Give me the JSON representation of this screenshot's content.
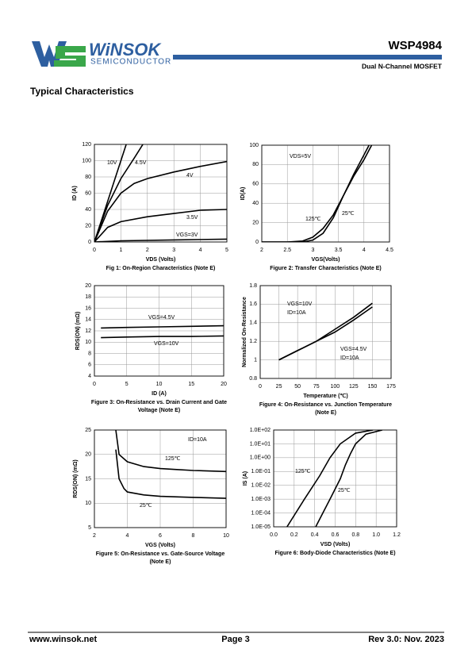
{
  "header": {
    "brand": "WiNSOK",
    "brand_sub": "SEMICONDUCTOR",
    "part": "WSP4984",
    "description": "Dual N-Channel MOSFET"
  },
  "section_title": "Typical Characteristics",
  "footer": {
    "website": "www.winsok.net",
    "page": "Page  3",
    "revision": "Rev 3.0: Nov. 2023"
  },
  "chart_data": [
    {
      "type": "line",
      "caption": [
        "Fig 1: On-Region Characteristics (Note E)"
      ],
      "x_label": "VDS (Volts)",
      "y_label": "ID (A)",
      "grid": true,
      "color": "#000000",
      "xlim": [
        0,
        5
      ],
      "xticks": [
        0,
        1,
        2,
        3,
        4,
        5
      ],
      "ylim": [
        0,
        120
      ],
      "yticks": [
        0,
        20,
        40,
        60,
        80,
        100,
        120
      ],
      "annotations": [],
      "series": [
        {
          "name": "10V",
          "x": [
            0,
            0.4,
            0.8,
            1.2
          ],
          "values": [
            0,
            40,
            80,
            120
          ]
        },
        {
          "name": "4.5V",
          "x": [
            0,
            0.5,
            1,
            1.5,
            1.83
          ],
          "values": [
            0,
            45,
            78,
            103,
            120
          ]
        },
        {
          "name": "4V",
          "x": [
            0,
            0.5,
            1,
            1.5,
            2,
            3,
            4,
            5
          ],
          "values": [
            0,
            38,
            60,
            72,
            78,
            86,
            93,
            99
          ]
        },
        {
          "name": "3.5V",
          "x": [
            0,
            0.5,
            1,
            2,
            3,
            4,
            5
          ],
          "values": [
            0,
            18,
            25,
            31,
            35,
            39,
            40
          ]
        },
        {
          "name": "VGS=3V",
          "x": [
            0,
            1,
            3,
            5
          ],
          "values": [
            0,
            1.5,
            2.5,
            3.5
          ]
        }
      ]
    },
    {
      "type": "line",
      "caption": [
        "Figure 2: Transfer Characteristics (Note E)"
      ],
      "x_label": "VGS(Volts)",
      "y_label": "ID(A)",
      "grid": true,
      "color": "#000000",
      "xlim": [
        2,
        4.5
      ],
      "xticks": [
        2,
        2.5,
        3,
        3.5,
        4,
        4.5
      ],
      "ylim": [
        0,
        100
      ],
      "yticks": [
        0,
        20,
        40,
        60,
        80,
        100
      ],
      "annotations": [
        "VDS=5V"
      ],
      "series": [
        {
          "name": "125℃",
          "x": [
            2,
            2.5,
            2.8,
            3,
            3.2,
            3.4,
            3.6,
            3.8,
            4,
            4.15
          ],
          "values": [
            0,
            0,
            1,
            5,
            14,
            28,
            48,
            68,
            85,
            100
          ]
        },
        {
          "name": "25℃",
          "x": [
            2,
            2.8,
            3,
            3.2,
            3.4,
            3.6,
            3.8,
            4,
            4.1
          ],
          "values": [
            0,
            0,
            2,
            9,
            25,
            48,
            70,
            90,
            100
          ]
        }
      ]
    },
    {
      "type": "line",
      "caption": [
        "Figure 3: On-Resistance vs. Drain Current and Gate",
        "Voltage (Note E)"
      ],
      "x_label": "ID (A)",
      "y_label": "RDS(ON) (mΩ)",
      "grid": true,
      "color": "#000000",
      "xlim": [
        0,
        20
      ],
      "xticks": [
        0,
        5,
        10,
        15,
        20
      ],
      "ylim": [
        4,
        20
      ],
      "yticks": [
        4,
        6,
        8,
        10,
        12,
        14,
        16,
        18,
        20
      ],
      "annotations": [],
      "series": [
        {
          "name": "VGS=4.5V",
          "x": [
            1,
            5,
            10,
            15,
            20
          ],
          "values": [
            12.5,
            12.6,
            12.7,
            12.8,
            12.9
          ]
        },
        {
          "name": "VGS=10V",
          "x": [
            1,
            5,
            10,
            15,
            20
          ],
          "values": [
            10.8,
            10.9,
            11,
            11,
            11.1
          ]
        }
      ]
    },
    {
      "type": "line",
      "caption": [
        "Figure 4: On-Resistance vs. Junction Temperature",
        "(Note E)"
      ],
      "x_label": "Temperature (℃)",
      "y_label": "Normalized On-Resistance",
      "grid": true,
      "color": "#000000",
      "xlim": [
        0,
        175
      ],
      "xticks": [
        0,
        25,
        50,
        75,
        100,
        125,
        150,
        175
      ],
      "ylim": [
        0.8,
        1.8
      ],
      "yticks": [
        0.8,
        1,
        1.2,
        1.4,
        1.6,
        1.8
      ],
      "annotations": [
        "ID=10A",
        "ID=10A"
      ],
      "series": [
        {
          "name": "VGS=10V",
          "x": [
            25,
            50,
            75,
            100,
            125,
            150
          ],
          "values": [
            1,
            1.1,
            1.2,
            1.3,
            1.43,
            1.57
          ]
        },
        {
          "name": "VGS=4.5V",
          "x": [
            25,
            50,
            75,
            100,
            125,
            150
          ],
          "values": [
            1,
            1.1,
            1.2,
            1.33,
            1.46,
            1.61
          ]
        }
      ]
    },
    {
      "type": "line",
      "caption": [
        "Figure 5: On-Resistance vs. Gate-Source Voltage",
        "(Note E)"
      ],
      "x_label": "VGS (Volts)",
      "y_label": "RDS(ON) (mΩ)",
      "grid": true,
      "color": "#000000",
      "xlim": [
        2,
        10
      ],
      "xticks": [
        2,
        4,
        6,
        8,
        10
      ],
      "ylim": [
        5,
        25
      ],
      "yticks": [
        5,
        10,
        15,
        20,
        25
      ],
      "annotations": [
        "ID=10A"
      ],
      "series": [
        {
          "name": "125℃",
          "x": [
            3.3,
            3.5,
            4,
            5,
            6,
            7,
            8,
            10
          ],
          "values": [
            25,
            20,
            18.5,
            17.5,
            17.1,
            16.9,
            16.7,
            16.5
          ]
        },
        {
          "name": "25℃",
          "x": [
            3.3,
            3.5,
            3.8,
            4,
            5,
            6,
            8,
            10
          ],
          "values": [
            21,
            15,
            13,
            12.3,
            11.7,
            11.4,
            11.2,
            11
          ]
        }
      ]
    },
    {
      "type": "line",
      "caption": [
        "Figure 6: Body-Diode Characteristics (Note E)"
      ],
      "x_label": "VSD (Volts)",
      "y_label": "IS (A)",
      "grid": true,
      "log_y": true,
      "color": "#000000",
      "xlim": [
        0,
        1.2
      ],
      "xticks": [
        {
          "value": 0,
          "label": "0.0"
        },
        0.2,
        0.4,
        0.6,
        0.8,
        {
          "value": 1,
          "label": "1.0"
        },
        1.2
      ],
      "ylim": [
        1e-05,
        100
      ],
      "yticks": [
        {
          "value": 1e-05,
          "label": "1.0E-05"
        },
        {
          "value": 0.0001,
          "label": "1.0E-04"
        },
        {
          "value": 0.001,
          "label": "1.0E-03"
        },
        {
          "value": 0.01,
          "label": "1.0E-02"
        },
        {
          "value": 0.1,
          "label": "1.0E-01"
        },
        {
          "value": 1,
          "label": "1.0E+00"
        },
        {
          "value": 10,
          "label": "1.0E+01"
        },
        {
          "value": 100,
          "label": "1.0E+02"
        }
      ],
      "annotations": [],
      "series": [
        {
          "name": "125℃",
          "x": [
            0.13,
            0.3,
            0.45,
            0.55,
            0.65,
            0.8,
            0.97
          ],
          "values": [
            1e-05,
            0.001,
            0.05,
            1,
            10,
            60,
            100
          ]
        },
        {
          "name": "25℃",
          "x": [
            0.41,
            0.55,
            0.65,
            0.7,
            0.75,
            0.8,
            0.9,
            1.06
          ],
          "values": [
            1e-05,
            0.001,
            0.03,
            0.3,
            2,
            10,
            50,
            100
          ]
        }
      ]
    }
  ]
}
